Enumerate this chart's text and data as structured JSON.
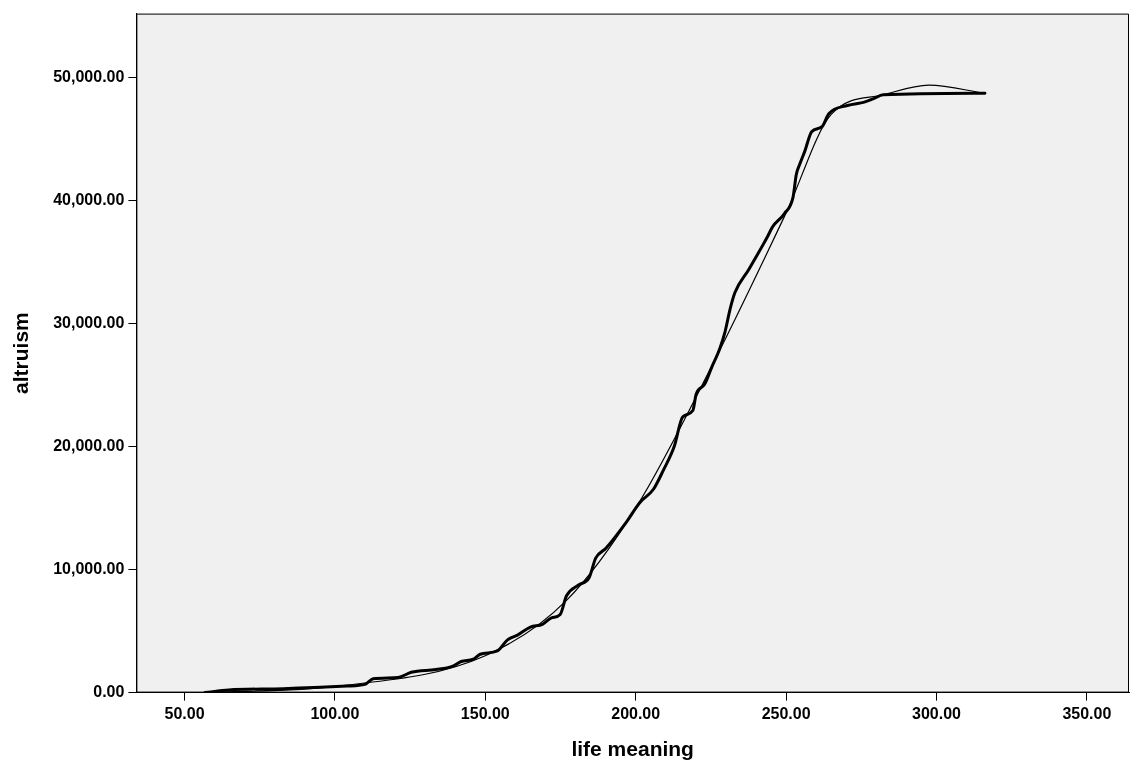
{
  "chart_data": {
    "type": "line",
    "xlabel": "life meaning",
    "ylabel": "altruism",
    "xlim": [
      34,
      364
    ],
    "xticks": [
      {
        "value": 50,
        "label": "50.00"
      },
      {
        "value": 100,
        "label": "100.00"
      },
      {
        "value": 150,
        "label": "150.00"
      },
      {
        "value": 200,
        "label": "200.00"
      },
      {
        "value": 250,
        "label": "250.00"
      },
      {
        "value": 300,
        "label": "300.00"
      },
      {
        "value": 350,
        "label": "350.00"
      }
    ],
    "ylim": [
      0,
      55200
    ],
    "yticks": [
      {
        "value": 0,
        "label": "0.00"
      },
      {
        "value": 10000,
        "label": "10,000.00"
      },
      {
        "value": 20000,
        "label": "20,000.00"
      },
      {
        "value": 30000,
        "label": "30,000.00"
      },
      {
        "value": 40000,
        "label": "40,000.00"
      },
      {
        "value": 50000,
        "label": "50,000.00"
      }
    ],
    "grid": false,
    "legend": false,
    "marker": "none",
    "line_style": "solid",
    "series": [
      {
        "color": "#000000",
        "x": [
          56.8,
          64.7,
          82.8,
          90.7,
          104,
          110,
          112.7,
          121,
          125.4,
          133.6,
          139,
          142,
          146,
          148.3,
          154,
          157.3,
          160.7,
          165,
          169,
          172,
          174.9,
          177,
          181,
          184.5,
          186.7,
          190.1,
          196.9,
          201.4,
          205.9,
          209.3,
          212.8,
          215.6,
          219,
          220.1,
          222.9,
          225.2,
          228,
          229.7,
          231.4,
          233,
          237.6,
          243.8,
          245.5,
          249.4,
          252.3,
          253.4,
          254.5,
          256.2,
          258.5,
          261.9,
          264.2,
          270.4,
          276,
          278.9,
          282.3,
          316.1
        ],
        "values": [
          0,
          210,
          320,
          400,
          530,
          670,
          1120,
          1230,
          1650,
          1870,
          2130,
          2530,
          2720,
          3120,
          3390,
          4270,
          4670,
          5330,
          5550,
          6080,
          6350,
          7870,
          8750,
          9330,
          10930,
          11730,
          13860,
          15460,
          16530,
          18130,
          20000,
          22400,
          22930,
          24260,
          25060,
          26400,
          28000,
          29330,
          31200,
          32530,
          34400,
          37060,
          37860,
          38930,
          40260,
          42130,
          42930,
          44000,
          45600,
          46000,
          47060,
          47730,
          48000,
          48260,
          48600,
          48720
        ]
      },
      {
        "color": "#000000",
        "x": [
          56.8,
          100,
          150,
          177,
          200,
          225,
          250,
          265,
          282.3,
          297.5,
          316.1
        ],
        "values": [
          0,
          500,
          3000,
          7500,
          15000,
          26400,
          39000,
          47000,
          48600,
          49380,
          48720
        ]
      }
    ]
  }
}
